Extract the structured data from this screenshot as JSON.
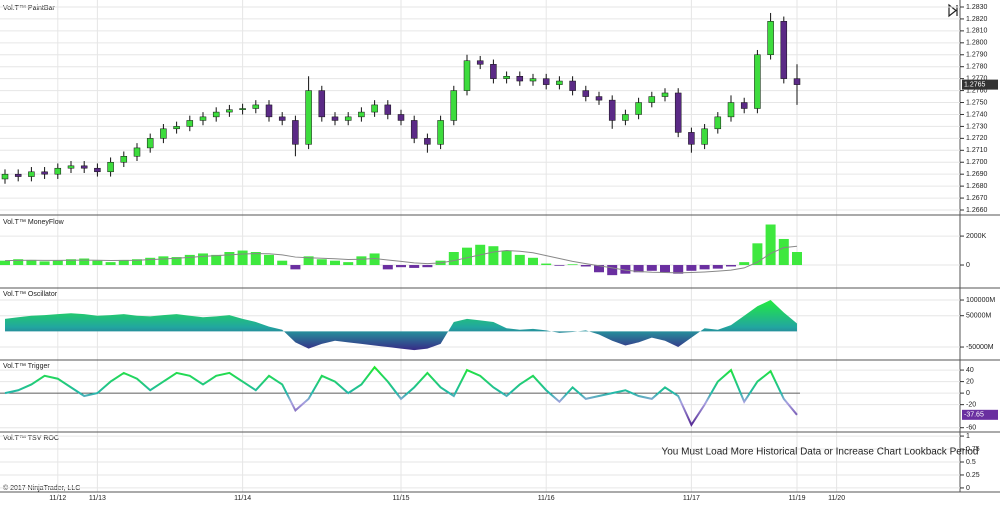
{
  "chart_data": [
    {
      "type": "candlestick",
      "title": "Vol.T™ PaintBar",
      "up_color": "#3ddc3d",
      "down_color": "#5b2a86",
      "grid": true,
      "categories": [
        null,
        null,
        null,
        null,
        "11/12",
        null,
        null,
        "11/13",
        null,
        null,
        null,
        null,
        null,
        null,
        null,
        null,
        null,
        null,
        "11/14",
        null,
        null,
        null,
        null,
        null,
        null,
        null,
        null,
        null,
        null,
        null,
        "11/15",
        null,
        null,
        null,
        null,
        null,
        null,
        null,
        null,
        null,
        null,
        "11/16",
        null,
        null,
        null,
        null,
        null,
        null,
        null,
        null,
        null,
        null,
        "11/17",
        null,
        null,
        null,
        null,
        null,
        null,
        null,
        "11/19",
        null,
        null,
        "11/20"
      ],
      "ohlc": [
        [
          1.2686,
          1.2694,
          1.2682,
          1.269
        ],
        [
          1.269,
          1.2694,
          1.2684,
          1.2688
        ],
        [
          1.2688,
          1.2696,
          1.2684,
          1.2692
        ],
        [
          1.2692,
          1.2696,
          1.2686,
          1.269
        ],
        [
          1.269,
          1.2699,
          1.2686,
          1.2695
        ],
        [
          1.2695,
          1.2701,
          1.2691,
          1.2697
        ],
        [
          1.2697,
          1.2701,
          1.2691,
          1.2695
        ],
        [
          1.2695,
          1.2699,
          1.2688,
          1.2692
        ],
        [
          1.2692,
          1.2704,
          1.2688,
          1.27
        ],
        [
          1.27,
          1.2709,
          1.2696,
          1.2705
        ],
        [
          1.2705,
          1.2716,
          1.2701,
          1.2712
        ],
        [
          1.2712,
          1.2724,
          1.2708,
          1.272
        ],
        [
          1.272,
          1.2732,
          1.2716,
          1.2728
        ],
        [
          1.2728,
          1.2734,
          1.2724,
          1.273
        ],
        [
          1.273,
          1.2739,
          1.2726,
          1.2735
        ],
        [
          1.2735,
          1.2742,
          1.2731,
          1.2738
        ],
        [
          1.2738,
          1.2746,
          1.2734,
          1.2742
        ],
        [
          1.2742,
          1.2748,
          1.2738,
          1.2744
        ],
        [
          1.2744,
          1.2749,
          1.274,
          1.2745
        ],
        [
          1.2745,
          1.2752,
          1.2741,
          1.2748
        ],
        [
          1.2748,
          1.2752,
          1.2734,
          1.2738
        ],
        [
          1.2738,
          1.2742,
          1.2731,
          1.2735
        ],
        [
          1.2735,
          1.2739,
          1.2705,
          1.2715
        ],
        [
          1.2715,
          1.2772,
          1.2711,
          1.276
        ],
        [
          1.276,
          1.2764,
          1.2734,
          1.2738
        ],
        [
          1.2738,
          1.2742,
          1.2731,
          1.2735
        ],
        [
          1.2735,
          1.2742,
          1.2731,
          1.2738
        ],
        [
          1.2738,
          1.2746,
          1.2734,
          1.2742
        ],
        [
          1.2742,
          1.2752,
          1.2738,
          1.2748
        ],
        [
          1.2748,
          1.2752,
          1.2736,
          1.274
        ],
        [
          1.274,
          1.2744,
          1.2731,
          1.2735
        ],
        [
          1.2735,
          1.2739,
          1.2716,
          1.272
        ],
        [
          1.272,
          1.2724,
          1.2708,
          1.2715
        ],
        [
          1.2715,
          1.2739,
          1.2711,
          1.2735
        ],
        [
          1.2735,
          1.2764,
          1.2731,
          1.276
        ],
        [
          1.276,
          1.279,
          1.2756,
          1.2785
        ],
        [
          1.2785,
          1.2789,
          1.2778,
          1.2782
        ],
        [
          1.2782,
          1.2786,
          1.2766,
          1.277
        ],
        [
          1.277,
          1.2776,
          1.2766,
          1.2772
        ],
        [
          1.2772,
          1.2776,
          1.2764,
          1.2768
        ],
        [
          1.2768,
          1.2774,
          1.2764,
          1.277
        ],
        [
          1.277,
          1.2774,
          1.2761,
          1.2765
        ],
        [
          1.2765,
          1.2772,
          1.2761,
          1.2768
        ],
        [
          1.2768,
          1.2772,
          1.2756,
          1.276
        ],
        [
          1.276,
          1.2764,
          1.2751,
          1.2755
        ],
        [
          1.2755,
          1.2759,
          1.2748,
          1.2752
        ],
        [
          1.2752,
          1.2756,
          1.2728,
          1.2735
        ],
        [
          1.2735,
          1.2744,
          1.2731,
          1.274
        ],
        [
          1.274,
          1.2754,
          1.2736,
          1.275
        ],
        [
          1.275,
          1.2759,
          1.2746,
          1.2755
        ],
        [
          1.2755,
          1.2762,
          1.2751,
          1.2758
        ],
        [
          1.2758,
          1.2762,
          1.2721,
          1.2725
        ],
        [
          1.2725,
          1.2729,
          1.2708,
          1.2715
        ],
        [
          1.2715,
          1.2732,
          1.2711,
          1.2728
        ],
        [
          1.2728,
          1.2742,
          1.2724,
          1.2738
        ],
        [
          1.2738,
          1.2756,
          1.2734,
          1.275
        ],
        [
          1.275,
          1.2754,
          1.2741,
          1.2745
        ],
        [
          1.2745,
          1.2794,
          1.2741,
          1.279
        ],
        [
          1.279,
          1.2825,
          1.2786,
          1.2818
        ],
        [
          1.2818,
          1.2822,
          1.2766,
          1.277
        ],
        [
          1.277,
          1.2782,
          1.2748,
          1.2765
        ],
        null,
        null,
        null
      ],
      "ylim": [
        1.26575,
        1.28325
      ],
      "yticks": [
        {
          "value": 1.266,
          "label": "1.2660"
        },
        {
          "value": 1.267,
          "label": "1.2670"
        },
        {
          "value": 1.268,
          "label": "1.2680"
        },
        {
          "value": 1.269,
          "label": "1.2690"
        },
        {
          "value": 1.27,
          "label": "1.2700"
        },
        {
          "value": 1.271,
          "label": "1.2710"
        },
        {
          "value": 1.272,
          "label": "1.2720"
        },
        {
          "value": 1.273,
          "label": "1.2730"
        },
        {
          "value": 1.274,
          "label": "1.2740"
        },
        {
          "value": 1.275,
          "label": "1.2750"
        },
        {
          "value": 1.276,
          "label": "1.2760"
        },
        {
          "value": 1.277,
          "label": "1.2770"
        },
        {
          "value": 1.278,
          "label": "1.2780"
        },
        {
          "value": 1.279,
          "label": "1.2790"
        },
        {
          "value": 1.28,
          "label": "1.2800"
        },
        {
          "value": 1.281,
          "label": "1.2810"
        },
        {
          "value": 1.282,
          "label": "1.2820"
        },
        {
          "value": 1.283,
          "label": "1.2830"
        }
      ]
    },
    {
      "type": "bar",
      "title": "Vol.T™ MoneyFlow",
      "up_color": "#3ee83e",
      "down_color": "#6a2fa0",
      "grid": true,
      "series": [
        {
          "type": "bar",
          "values": [
            300000,
            400000,
            350000,
            250000,
            300000,
            400000,
            450000,
            300000,
            200000,
            350000,
            400000,
            500000,
            600000,
            550000,
            700000,
            800000,
            700000,
            900000,
            1000000,
            900000,
            700000,
            300000,
            -300000,
            600000,
            400000,
            300000,
            200000,
            600000,
            800000,
            -300000,
            -150000,
            -200000,
            -150000,
            300000,
            900000,
            1200000,
            1400000,
            1300000,
            1000000,
            700000,
            500000,
            100000,
            -50000,
            50000,
            -100000,
            -500000,
            -700000,
            -600000,
            -500000,
            -400000,
            -500000,
            -600000,
            -400000,
            -300000,
            -250000,
            -100000,
            200000,
            1500000,
            2800000,
            1800000,
            900000,
            null,
            null,
            null
          ]
        },
        {
          "type": "line",
          "color": "#888888",
          "values": [
            300000,
            320000,
            330000,
            320000,
            320000,
            330000,
            340000,
            330000,
            310000,
            320000,
            330000,
            370000,
            420000,
            470000,
            530000,
            600000,
            650000,
            700000,
            760000,
            790000,
            780000,
            700000,
            550000,
            500000,
            470000,
            430000,
            380000,
            400000,
            450000,
            350000,
            250000,
            150000,
            100000,
            150000,
            300000,
            500000,
            700000,
            900000,
            1000000,
            950000,
            850000,
            650000,
            450000,
            250000,
            100000,
            -50000,
            -200000,
            -350000,
            -450000,
            -500000,
            -520000,
            -540000,
            -520000,
            -480000,
            -420000,
            -350000,
            -200000,
            200000,
            800000,
            1200000,
            1300000,
            null,
            null,
            null
          ]
        }
      ],
      "ylim": [
        -1450000,
        3250000
      ],
      "yticks": [
        {
          "value": 2000000,
          "label": "2000K"
        },
        0
      ]
    },
    {
      "type": "area",
      "title": "Vol.T™ Oscillator",
      "grid": true,
      "values": [
        40000000000.0,
        45000000000.0,
        50000000000.0,
        52000000000.0,
        55000000000.0,
        58000000000.0,
        55000000000.0,
        50000000000.0,
        52000000000.0,
        55000000000.0,
        50000000000.0,
        48000000000.0,
        52000000000.0,
        55000000000.0,
        50000000000.0,
        45000000000.0,
        48000000000.0,
        52000000000.0,
        40000000000.0,
        30000000000.0,
        15000000000.0,
        5000000000.0,
        -35000000000.0,
        -55000000000.0,
        -40000000000.0,
        -30000000000.0,
        -35000000000.0,
        -40000000000.0,
        -45000000000.0,
        -50000000000.0,
        -55000000000.0,
        -60000000000.0,
        -55000000000.0,
        -40000000000.0,
        30000000000.0,
        40000000000.0,
        35000000000.0,
        30000000000.0,
        10000000000.0,
        5000000000.0,
        8000000000.0,
        3000000000.0,
        -5000000000.0,
        -2000000000.0,
        3000000000.0,
        -10000000000.0,
        -30000000000.0,
        -45000000000.0,
        -35000000000.0,
        -20000000000.0,
        -30000000000.0,
        -50000000000.0,
        -20000000000.0,
        10000000000.0,
        5000000000.0,
        20000000000.0,
        50000000000.0,
        80000000000.0,
        100000000000.0,
        60000000000.0,
        25000000000.0,
        null,
        null,
        null
      ],
      "ylim": [
        -85000000000.0,
        132000000000.0
      ],
      "yticks": [
        {
          "value": 100000000000.0,
          "label": "100000M"
        },
        {
          "value": 50000000000.0,
          "label": "50000M"
        },
        {
          "value": -50000000000.0,
          "label": "-50000M"
        }
      ]
    },
    {
      "type": "line",
      "title": "Vol.T™ Trigger",
      "grid": true,
      "values": [
        0,
        5,
        15,
        30,
        25,
        10,
        -5,
        0,
        20,
        35,
        25,
        5,
        20,
        35,
        30,
        15,
        30,
        35,
        20,
        5,
        30,
        15,
        -30,
        -10,
        30,
        20,
        0,
        15,
        45,
        20,
        -10,
        10,
        35,
        10,
        -5,
        40,
        30,
        10,
        -5,
        15,
        30,
        5,
        -15,
        10,
        -10,
        -5,
        0,
        5,
        -5,
        -10,
        10,
        -5,
        -55,
        -20,
        20,
        40,
        -15,
        20,
        38,
        -10,
        -37.65,
        null,
        null,
        null
      ],
      "ylim": [
        -64,
        54
      ],
      "yticks": [
        40,
        20,
        0,
        -20,
        -60
      ]
    },
    {
      "type": "line",
      "title": "Vol.T™ TSV ROC",
      "grid": true,
      "annotation": "You Must Load More Historical Data or Increase Chart Lookback Period",
      "ylim": [
        -0.04,
        1.04
      ],
      "yticks": [
        0,
        0.25,
        0.5,
        0.75,
        1
      ]
    }
  ],
  "footer": "© 2017 NinjaTrader, LLC"
}
